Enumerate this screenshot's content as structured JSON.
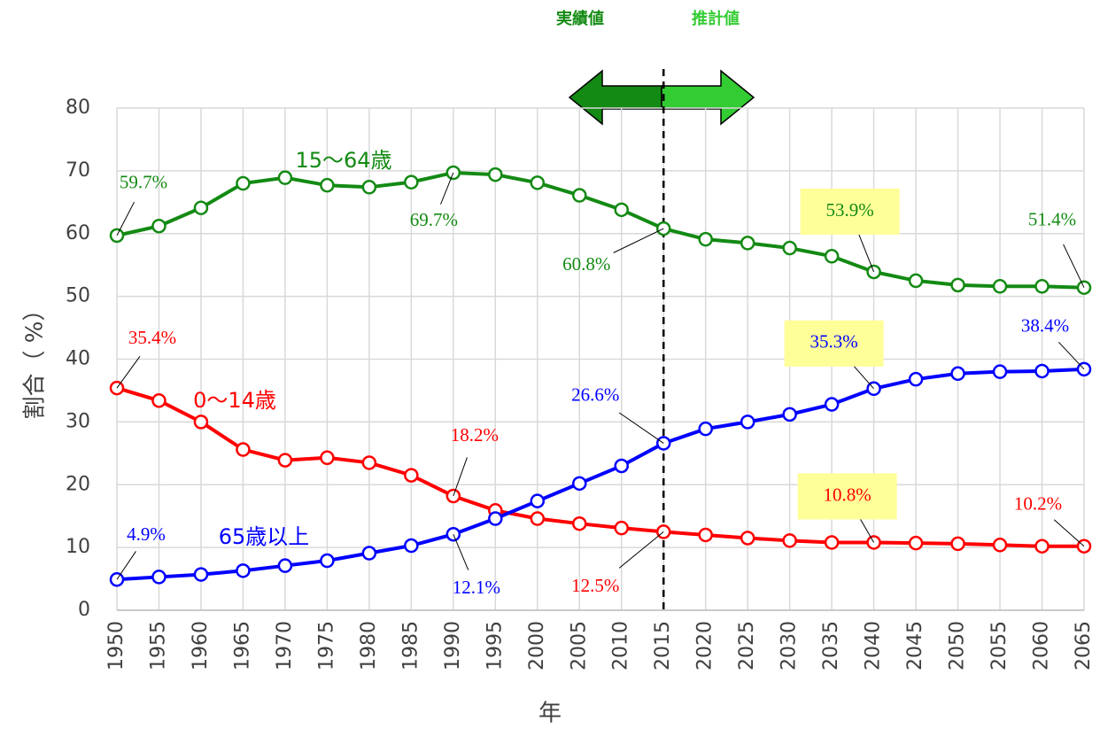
{
  "chart_data": {
    "type": "line",
    "x_label": "年",
    "y_label": "割合（ %）",
    "annotations": [
      "実績値",
      "推計値"
    ],
    "divider": 2015,
    "x": [
      1950,
      1955,
      1960,
      1965,
      1970,
      1975,
      1980,
      1985,
      1990,
      1995,
      2000,
      2005,
      2010,
      2015,
      2020,
      2025,
      2030,
      2035,
      2040,
      2045,
      2050,
      2055,
      2060,
      2065
    ],
    "xlim": [
      1950,
      2065
    ],
    "xticks": [
      1950,
      1955,
      1960,
      1965,
      1970,
      1975,
      1980,
      1985,
      1990,
      1995,
      2000,
      2005,
      2010,
      2015,
      2020,
      2025,
      2030,
      2035,
      2040,
      2045,
      2050,
      2055,
      2060,
      2065
    ],
    "ylim": [
      0,
      80
    ],
    "yticks": [
      0,
      10,
      20,
      30,
      40,
      50,
      60,
      70,
      80
    ],
    "grid": true,
    "series": [
      {
        "name": "15～64歳",
        "color": "#138a13",
        "values": [
          59.7,
          61.2,
          64.1,
          68.0,
          68.9,
          67.7,
          67.4,
          68.2,
          69.7,
          69.4,
          68.1,
          66.1,
          63.8,
          60.8,
          59.1,
          58.5,
          57.7,
          56.4,
          53.9,
          52.5,
          51.8,
          51.6,
          51.6,
          51.4
        ],
        "value_labels": [
          "59.7%",
          null,
          null,
          null,
          null,
          null,
          null,
          null,
          "69.7%",
          null,
          null,
          null,
          null,
          "60.8%",
          null,
          null,
          null,
          null,
          "53.9%",
          null,
          null,
          null,
          null,
          "51.4%"
        ]
      },
      {
        "name": "0～14歳",
        "color": "#ff0000",
        "values": [
          35.4,
          33.4,
          30.0,
          25.6,
          23.9,
          24.3,
          23.5,
          21.5,
          18.2,
          15.9,
          14.6,
          13.8,
          13.1,
          12.5,
          12.0,
          11.5,
          11.1,
          10.8,
          10.8,
          10.7,
          10.6,
          10.4,
          10.2,
          10.2
        ],
        "value_labels": [
          "35.4%",
          null,
          null,
          null,
          null,
          null,
          null,
          null,
          "18.2%",
          null,
          null,
          null,
          null,
          "12.5%",
          null,
          null,
          null,
          null,
          "10.8%",
          null,
          null,
          null,
          null,
          "10.2%"
        ]
      },
      {
        "name": "65歳以上",
        "color": "#0000ff",
        "values": [
          4.9,
          5.3,
          5.7,
          6.3,
          7.1,
          7.9,
          9.1,
          10.3,
          12.1,
          14.6,
          17.4,
          20.2,
          23.0,
          26.6,
          28.9,
          30.0,
          31.2,
          32.8,
          35.3,
          36.8,
          37.7,
          38.0,
          38.1,
          38.4
        ],
        "value_labels": [
          "4.9%",
          null,
          null,
          null,
          null,
          null,
          null,
          null,
          "12.1%",
          null,
          null,
          null,
          null,
          "26.6%",
          null,
          null,
          null,
          null,
          "35.3%",
          null,
          null,
          null,
          null,
          "38.4%"
        ]
      }
    ]
  }
}
